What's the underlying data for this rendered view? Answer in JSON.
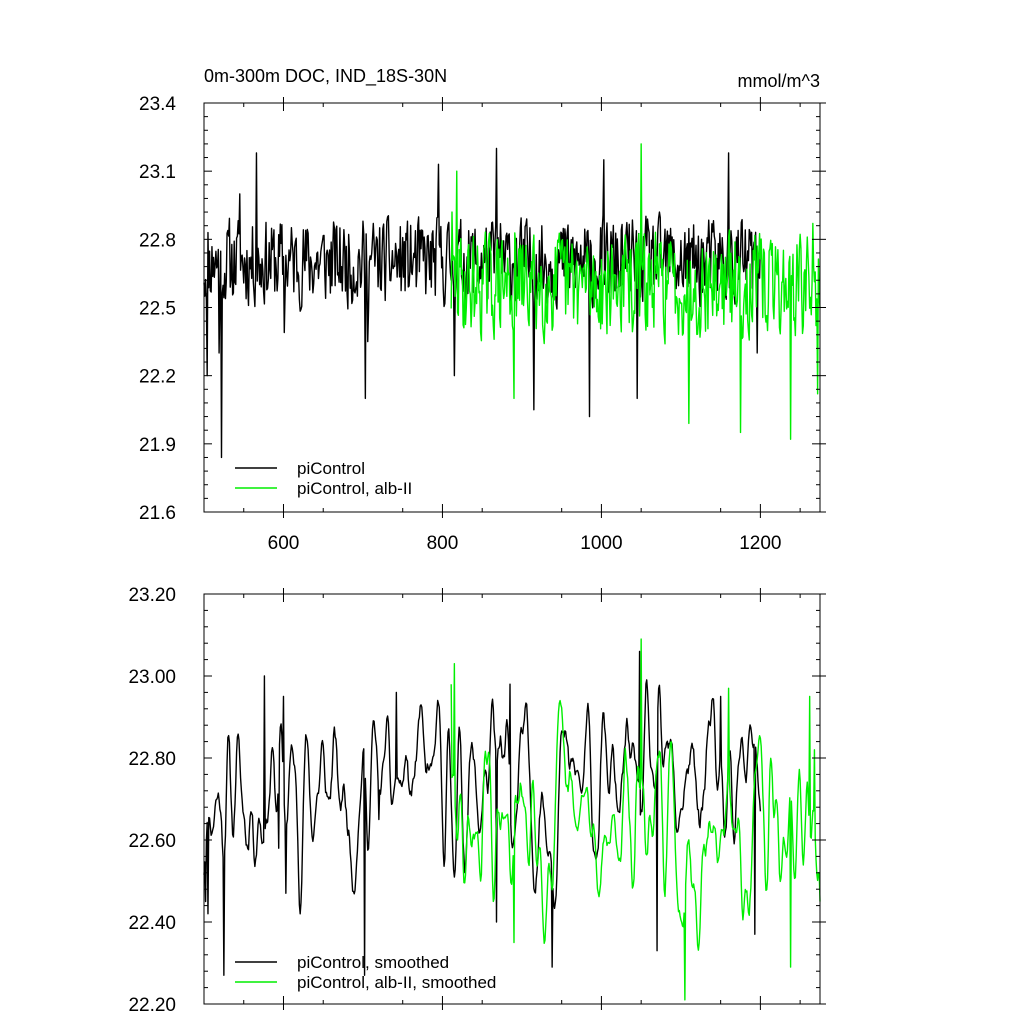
{
  "chart_data": [
    {
      "type": "line",
      "title": "0m-300m DOC, IND_18S-30N",
      "units": "mmol/m^3",
      "xlabel": "",
      "ylabel": "",
      "xlim": [
        500,
        1275
      ],
      "ylim": [
        21.6,
        23.4
      ],
      "xticks": [
        600,
        800,
        1000,
        1200
      ],
      "xtick_labels": [
        "600",
        "800",
        "1000",
        "1200"
      ],
      "yticks": [
        21.6,
        21.9,
        22.2,
        22.5,
        22.8,
        23.1,
        23.4
      ],
      "ytick_labels": [
        "21.6",
        "21.9",
        "22.2",
        "22.5",
        "22.8",
        "23.1",
        "23.4"
      ],
      "grid": false,
      "legend_position": "bottom-left",
      "series": [
        {
          "name": "piControl",
          "color": "#000000",
          "x": [
            500,
            1200
          ],
          "mean": 22.7,
          "amp": 0.22,
          "seed": 11,
          "smooth": 0,
          "anchors": [
            [
              501,
              22.55
            ],
            [
              504,
              22.2
            ],
            [
              512,
              22.72
            ],
            [
              519,
              22.3
            ],
            [
              522,
              21.84
            ],
            [
              526,
              22.65
            ],
            [
              545,
              23.0
            ],
            [
              566,
              23.18
            ],
            [
              601,
              22.39
            ],
            [
              703,
              22.1
            ],
            [
              706,
              22.35
            ],
            [
              795,
              23.13
            ],
            [
              815,
              22.2
            ],
            [
              868,
              23.2
            ],
            [
              915,
              22.05
            ],
            [
              985,
              22.02
            ],
            [
              1003,
              23.15
            ],
            [
              1045,
              22.1
            ],
            [
              1160,
              23.18
            ],
            [
              1196,
              22.3
            ]
          ]
        },
        {
          "name": "piControl, alb-II",
          "color": "#00ee00",
          "x": [
            811,
            1275
          ],
          "mean": 22.6,
          "amp": 0.26,
          "seed": 29,
          "smooth": 0,
          "anchors": [
            [
              812,
              22.92
            ],
            [
              818,
              23.1
            ],
            [
              890,
              22.1
            ],
            [
              1050,
              23.22
            ],
            [
              1110,
              21.99
            ],
            [
              1175,
              21.95
            ],
            [
              1238,
              21.92
            ],
            [
              1266,
              22.87
            ],
            [
              1272,
              22.12
            ],
            [
              1275,
              22.5
            ]
          ]
        }
      ]
    },
    {
      "type": "line",
      "title": "",
      "xlabel": "",
      "ylabel": "",
      "xlim": [
        500,
        1275
      ],
      "ylim": [
        22.2,
        23.2
      ],
      "xticks": [
        600,
        800,
        1000,
        1200
      ],
      "yticks": [
        22.2,
        22.4,
        22.6,
        22.8,
        23.0,
        23.2
      ],
      "ytick_labels": [
        "22.20",
        "22.40",
        "22.60",
        "22.80",
        "23.00",
        "23.20"
      ],
      "grid": false,
      "legend_position": "bottom-left",
      "series": [
        {
          "name": "piControl, smoothed",
          "color": "#000000",
          "x": [
            500,
            1200
          ],
          "mean": 22.72,
          "amp": 0.3,
          "seed": 11,
          "smooth": 2,
          "anchors": [
            [
              502,
              22.45
            ],
            [
              505,
              22.42
            ],
            [
              525,
              22.27
            ],
            [
              530,
              22.85
            ],
            [
              576,
              23.0
            ],
            [
              594,
              22.58
            ],
            [
              600,
              22.95
            ],
            [
              603,
              22.47
            ],
            [
              702,
              22.27
            ],
            [
              720,
              22.65
            ],
            [
              742,
              22.96
            ],
            [
              868,
              22.4
            ],
            [
              885,
              22.98
            ],
            [
              938,
              22.29
            ],
            [
              1048,
              23.06
            ],
            [
              1070,
              22.33
            ],
            [
              1150,
              22.95
            ],
            [
              1193,
              22.37
            ],
            [
              1200,
              22.67
            ]
          ]
        },
        {
          "name": "piControl, alb-II, smoothed",
          "color": "#00ee00",
          "x": [
            811,
            1275
          ],
          "mean": 22.62,
          "amp": 0.32,
          "seed": 29,
          "smooth": 2,
          "anchors": [
            [
              811,
              22.98
            ],
            [
              815,
              23.03
            ],
            [
              890,
              22.35
            ],
            [
              1050,
              23.09
            ],
            [
              1105,
              22.21
            ],
            [
              1160,
              22.97
            ],
            [
              1238,
              22.29
            ],
            [
              1262,
              22.95
            ],
            [
              1268,
              22.82
            ],
            [
              1275,
              22.45
            ]
          ]
        }
      ]
    }
  ]
}
